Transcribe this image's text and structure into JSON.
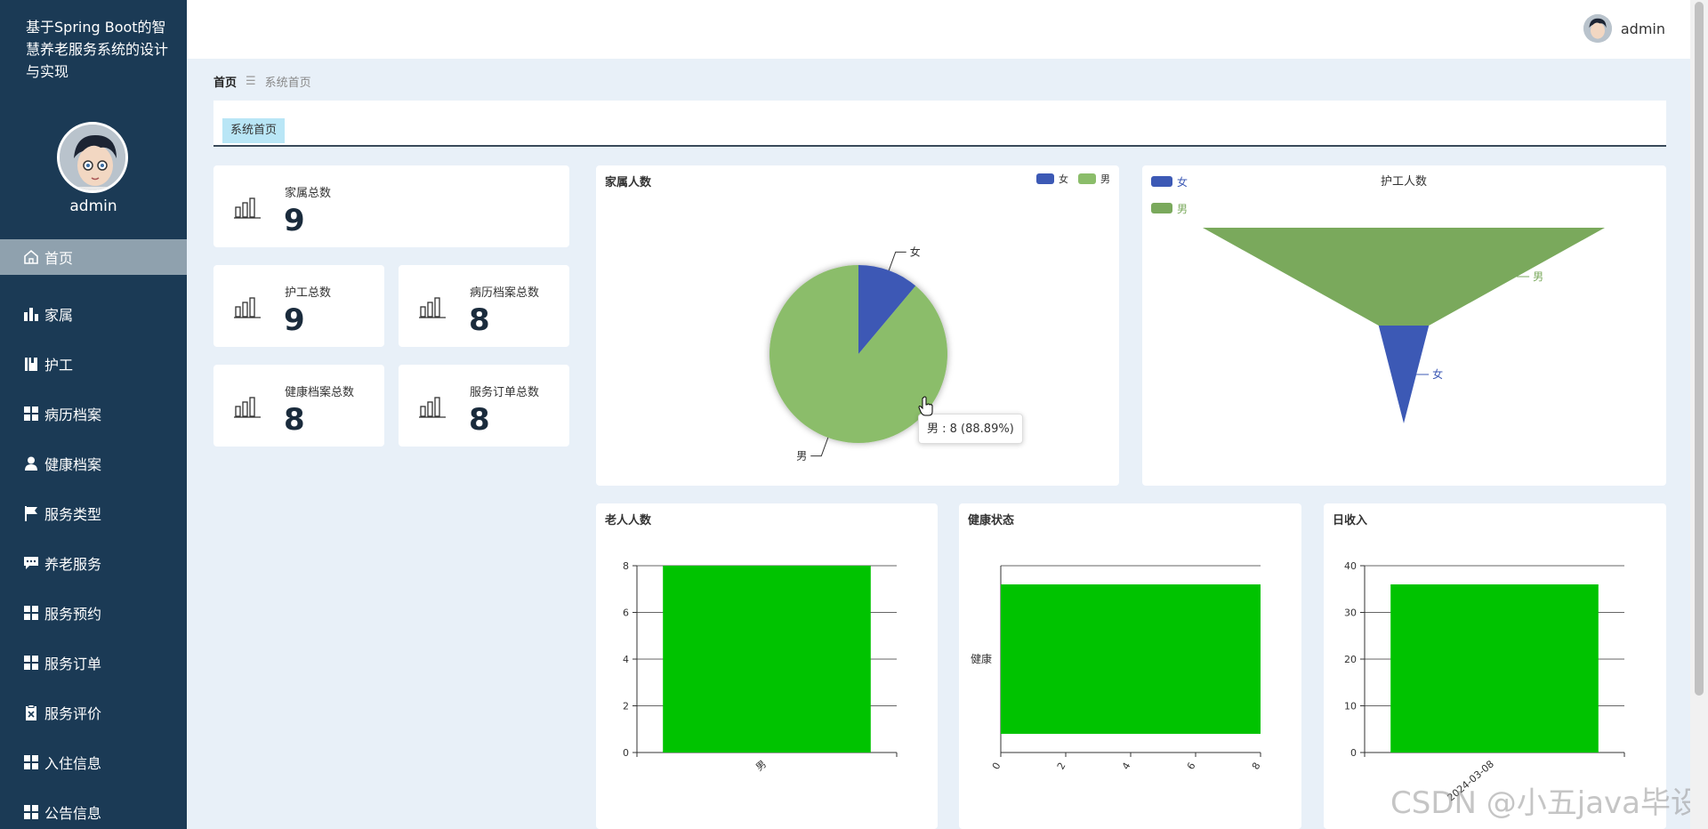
{
  "app": {
    "title": "基于Spring Boot的智慧养老服务系统的设计与实现",
    "username": "admin"
  },
  "menu": [
    {
      "label": "首页",
      "icon": "home-icon",
      "active": true
    },
    {
      "label": "家属",
      "icon": "bar-chart-icon"
    },
    {
      "label": "护工",
      "icon": "book-icon"
    },
    {
      "label": "病历档案",
      "icon": "grid-icon"
    },
    {
      "label": "健康档案",
      "icon": "person-icon"
    },
    {
      "label": "服务类型",
      "icon": "flag-icon"
    },
    {
      "label": "养老服务",
      "icon": "chat-icon"
    },
    {
      "label": "服务预约",
      "icon": "grid-icon"
    },
    {
      "label": "服务订单",
      "icon": "grid-icon"
    },
    {
      "label": "服务评价",
      "icon": "clipboard-icon"
    },
    {
      "label": "入住信息",
      "icon": "grid-icon"
    },
    {
      "label": "公告信息",
      "icon": "grid-icon"
    }
  ],
  "breadcrumb": {
    "home": "首页",
    "current": "系统首页"
  },
  "tabs": [
    {
      "label": "系统首页"
    }
  ],
  "stats": [
    {
      "label": "家属总数",
      "value": "9"
    },
    {
      "label": "护工总数",
      "value": "9"
    },
    {
      "label": "病历档案总数",
      "value": "8"
    },
    {
      "label": "健康档案总数",
      "value": "8"
    },
    {
      "label": "服务订单总数",
      "value": "8"
    }
  ],
  "watermark": "CSDN @小五java毕设",
  "chart_data": [
    {
      "type": "pie",
      "title": "家属人数",
      "legend": [
        "女",
        "男"
      ],
      "legend_position": "top-right",
      "slices": [
        {
          "name": "女",
          "value": 1
        },
        {
          "name": "男",
          "value": 8
        }
      ],
      "colors": [
        "#3c59b5",
        "#8bbd6a"
      ],
      "tooltip": "男 : 8 (88.89%)"
    },
    {
      "type": "funnel",
      "title": "护工人数",
      "legend": [
        "女",
        "男"
      ],
      "legend_position": "top-left",
      "slices": [
        {
          "name": "男",
          "value": 8
        },
        {
          "name": "女",
          "value": 1
        }
      ],
      "colors": [
        "#7aa95c",
        "#3c59b5"
      ]
    },
    {
      "type": "bar",
      "title": "老人人数",
      "categories": [
        "男"
      ],
      "values": [
        8
      ],
      "ylim": [
        0,
        8
      ],
      "yticks": [
        0,
        2,
        4,
        6,
        8
      ],
      "color": "#00c300",
      "grid": true
    },
    {
      "type": "bar",
      "orientation": "horizontal",
      "title": "健康状态",
      "categories": [
        "健康"
      ],
      "values": [
        8
      ],
      "xlim": [
        0,
        8
      ],
      "xticks": [
        0,
        2,
        4,
        6,
        8
      ],
      "color": "#00c300",
      "grid": false
    },
    {
      "type": "bar",
      "title": "日收入",
      "categories": [
        "2024-03-08"
      ],
      "values": [
        36
      ],
      "ylim": [
        0,
        40
      ],
      "yticks": [
        0,
        10,
        20,
        30,
        40
      ],
      "color": "#00c300",
      "grid": true
    }
  ]
}
